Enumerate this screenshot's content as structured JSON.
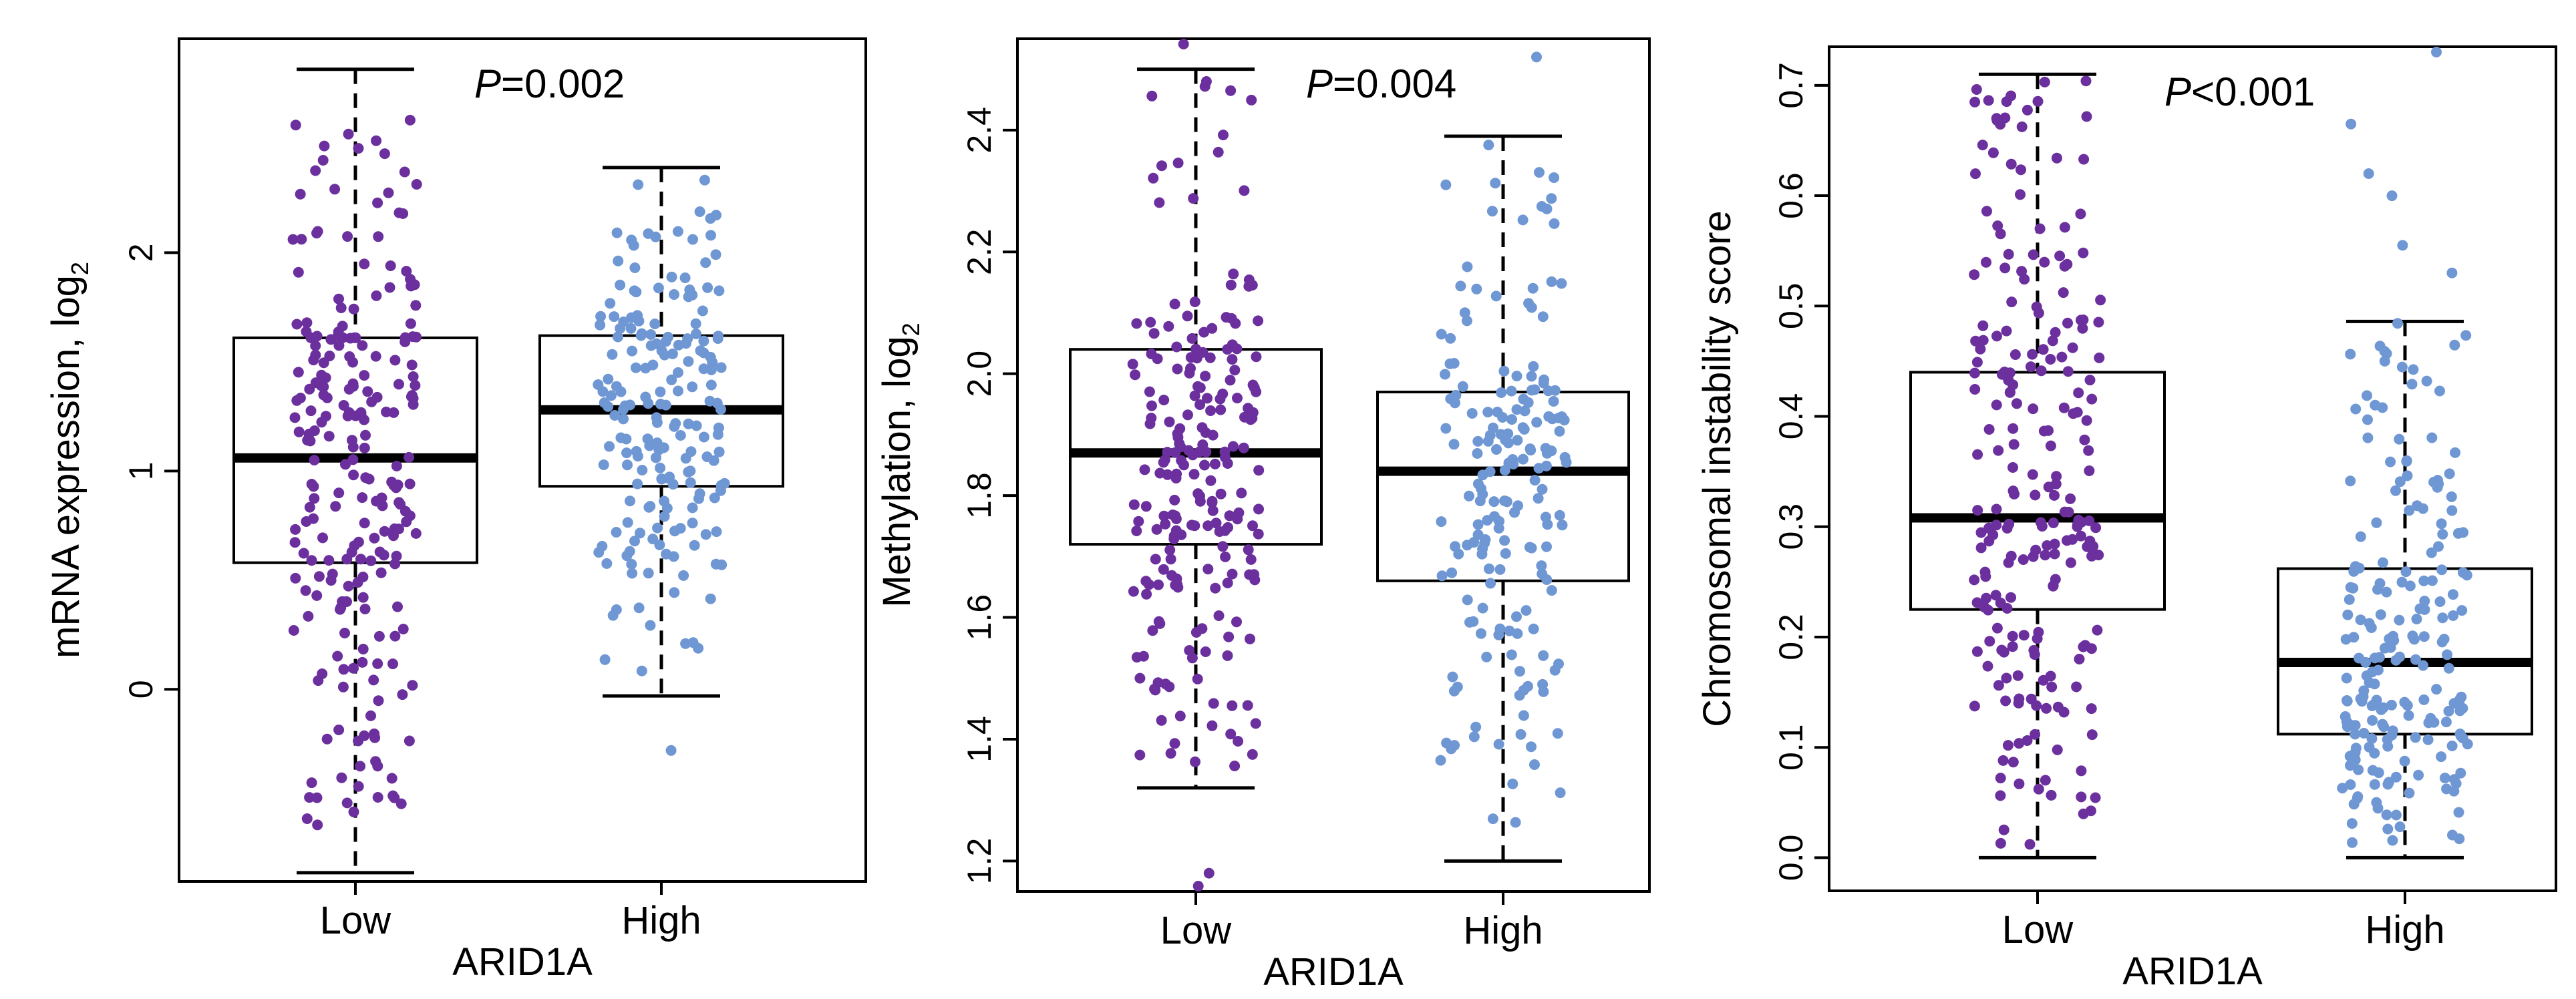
{
  "figure": {
    "panel_count": 3
  },
  "colors": {
    "low": "#6b2f9e",
    "high": "#6f97d3",
    "box": "#000000",
    "axis": "#000000"
  },
  "chart_data": [
    {
      "type": "box",
      "title": "",
      "xlabel": "ARID1A",
      "ylabel": "mRNA expression, log",
      "ylabel_subscript": "2",
      "annotation_italic": "P",
      "annotation_rest": "=0.002",
      "categories": [
        "Low",
        "High"
      ],
      "ylim": [
        -0.88,
        2.98
      ],
      "yticks": [
        0,
        1,
        2
      ],
      "ytick_labels": [
        "0",
        "1",
        "2"
      ],
      "boxes": [
        {
          "category": "Low",
          "whisker_low": -0.84,
          "q1": 0.58,
          "median": 1.06,
          "q3": 1.61,
          "whisker_high": 2.84
        },
        {
          "category": "High",
          "whisker_low": -0.03,
          "q1": 0.93,
          "median": 1.28,
          "q3": 1.62,
          "whisker_high": 2.39
        }
      ],
      "points": [
        {
          "category": "Low",
          "n": 230,
          "min": -0.68,
          "max": 2.62,
          "outliers": []
        },
        {
          "category": "High",
          "n": 190,
          "min": -0.03,
          "max": 2.38,
          "outliers": [
            -0.28
          ]
        }
      ]
    },
    {
      "type": "box",
      "title": "",
      "xlabel": "ARID1A",
      "ylabel": "Methylation, log",
      "ylabel_subscript": "2",
      "annotation_italic": "P",
      "annotation_rest": "=0.004",
      "categories": [
        "Low",
        "High"
      ],
      "ylim": [
        1.15,
        2.55
      ],
      "yticks": [
        1.2,
        1.4,
        1.6,
        1.8,
        2.0,
        2.2,
        2.4
      ],
      "ytick_labels": [
        "1.2",
        "1.4",
        "1.6",
        "1.8",
        "2.0",
        "2.2",
        "2.4"
      ],
      "boxes": [
        {
          "category": "Low",
          "whisker_low": 1.32,
          "q1": 1.72,
          "median": 1.87,
          "q3": 2.04,
          "whisker_high": 2.5
        },
        {
          "category": "High",
          "whisker_low": 1.2,
          "q1": 1.66,
          "median": 1.84,
          "q3": 1.97,
          "whisker_high": 2.39
        }
      ],
      "points": [
        {
          "category": "Low",
          "n": 210,
          "min": 1.33,
          "max": 2.5,
          "outliers": [
            1.18,
            1.15,
            2.55
          ]
        },
        {
          "category": "High",
          "n": 180,
          "min": 1.2,
          "max": 2.39,
          "outliers": [
            2.52
          ]
        }
      ]
    },
    {
      "type": "box",
      "title": "",
      "xlabel": "ARID1A",
      "ylabel": "Chromosomal instability score",
      "ylabel_subscript": "",
      "annotation_italic": "P",
      "annotation_rest": "<0.001",
      "categories": [
        "Low",
        "High"
      ],
      "ylim": [
        -0.03,
        0.735
      ],
      "yticks": [
        0.0,
        0.1,
        0.2,
        0.3,
        0.4,
        0.5,
        0.6,
        0.7
      ],
      "ytick_labels": [
        "0.0",
        "0.1",
        "0.2",
        "0.3",
        "0.4",
        "0.5",
        "0.6",
        "0.7"
      ],
      "boxes": [
        {
          "category": "Low",
          "whisker_low": 0.0,
          "q1": 0.225,
          "median": 0.308,
          "q3": 0.44,
          "whisker_high": 0.71
        },
        {
          "category": "High",
          "whisker_low": 0.0,
          "q1": 0.112,
          "median": 0.177,
          "q3": 0.262,
          "whisker_high": 0.486
        }
      ],
      "points": [
        {
          "category": "Low",
          "n": 220,
          "min": 0.0,
          "max": 0.71,
          "outliers": []
        },
        {
          "category": "High",
          "n": 200,
          "min": 0.0,
          "max": 0.486,
          "outliers": [
            0.74,
            0.665,
            0.62,
            0.6,
            0.555,
            0.53
          ]
        }
      ]
    }
  ]
}
